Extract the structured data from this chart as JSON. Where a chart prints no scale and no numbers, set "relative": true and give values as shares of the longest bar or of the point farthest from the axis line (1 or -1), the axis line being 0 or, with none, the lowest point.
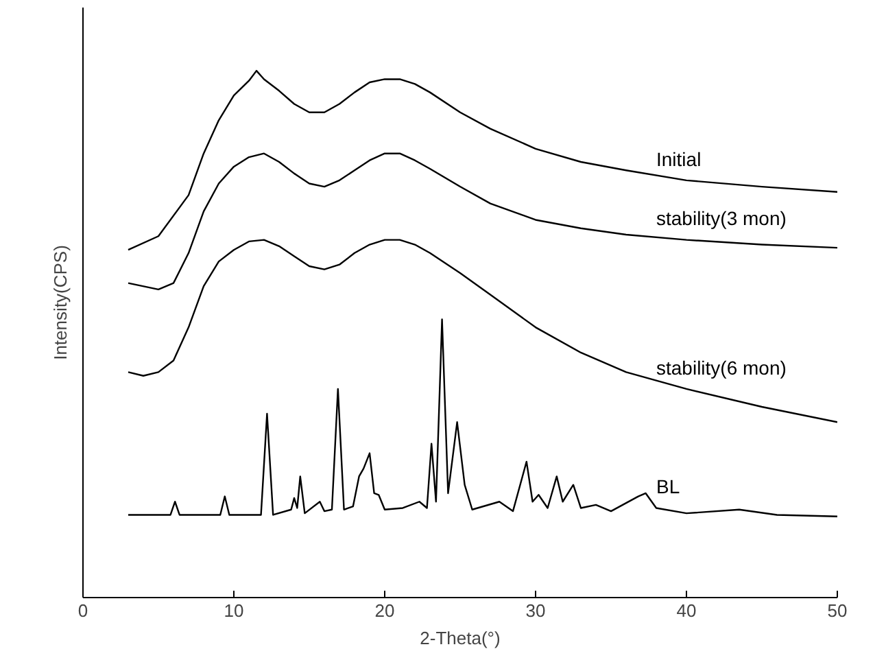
{
  "chart_data": {
    "type": "line",
    "relative": true,
    "xlabel": "2-Theta(°)",
    "ylabel": "Intensity(CPS)",
    "xlim": [
      0,
      50
    ],
    "xticks": [
      0,
      10,
      20,
      30,
      40,
      50
    ],
    "grid": false,
    "legend": false,
    "marker": "none",
    "line_style": "solid",
    "series": [
      {
        "name": "Initial",
        "color": "#000000",
        "x": [
          3,
          5,
          7,
          8,
          9,
          10,
          11,
          11.5,
          12,
          13,
          14,
          15,
          16,
          17,
          18,
          19,
          20,
          21,
          22,
          23,
          25,
          27,
          30,
          33,
          36,
          40,
          45,
          50
        ],
        "values": [
          0.66,
          0.686,
          0.764,
          0.843,
          0.906,
          0.953,
          0.981,
          1.0,
          0.984,
          0.962,
          0.937,
          0.921,
          0.921,
          0.937,
          0.959,
          0.978,
          0.984,
          0.984,
          0.975,
          0.959,
          0.921,
          0.89,
          0.852,
          0.827,
          0.811,
          0.792,
          0.78,
          0.77
        ]
      },
      {
        "name": "stability(3 mon)",
        "color": "#000000",
        "x": [
          3,
          5,
          6,
          7,
          8,
          9,
          10,
          11,
          12,
          13,
          14,
          15,
          16,
          17,
          18,
          19,
          20,
          21,
          22,
          23,
          25,
          27,
          30,
          33,
          36,
          40,
          45,
          50
        ],
        "values": [
          0.597,
          0.585,
          0.597,
          0.654,
          0.733,
          0.786,
          0.818,
          0.836,
          0.843,
          0.827,
          0.805,
          0.786,
          0.78,
          0.792,
          0.811,
          0.83,
          0.843,
          0.843,
          0.83,
          0.814,
          0.78,
          0.748,
          0.717,
          0.701,
          0.689,
          0.679,
          0.67,
          0.664
        ]
      },
      {
        "name": "stability(6 mon)",
        "color": "#000000",
        "x": [
          3,
          4,
          5,
          6,
          7,
          8,
          9,
          10,
          11,
          12,
          13,
          14,
          15,
          16,
          17,
          18,
          19,
          20,
          21,
          22,
          23,
          25,
          27,
          30,
          33,
          36,
          40,
          45,
          50
        ],
        "values": [
          0.428,
          0.421,
          0.428,
          0.45,
          0.513,
          0.591,
          0.638,
          0.66,
          0.676,
          0.679,
          0.667,
          0.648,
          0.629,
          0.623,
          0.632,
          0.654,
          0.67,
          0.679,
          0.679,
          0.67,
          0.654,
          0.616,
          0.575,
          0.513,
          0.465,
          0.428,
          0.396,
          0.362,
          0.333
        ]
      },
      {
        "name": "BL",
        "color": "#000000",
        "x": [
          3,
          5.8,
          6.1,
          6.4,
          9.1,
          9.4,
          9.7,
          11.8,
          12.2,
          12.6,
          13.8,
          14.0,
          14.2,
          14.4,
          14.7,
          15.7,
          16.0,
          16.5,
          16.9,
          17.3,
          17.9,
          18.3,
          18.6,
          19.0,
          19.3,
          19.6,
          20.0,
          21.2,
          22.3,
          22.8,
          23.1,
          23.4,
          23.8,
          24.2,
          24.8,
          25.3,
          25.8,
          27.6,
          28.5,
          29.4,
          29.8,
          30.2,
          30.8,
          31.4,
          31.8,
          32.5,
          33.0,
          34.0,
          35.0,
          36.8,
          37.3,
          38.0,
          40,
          43.5,
          46,
          50
        ],
        "values": [
          0.157,
          0.157,
          0.182,
          0.157,
          0.157,
          0.192,
          0.157,
          0.157,
          0.349,
          0.157,
          0.167,
          0.189,
          0.17,
          0.23,
          0.16,
          0.182,
          0.164,
          0.167,
          0.396,
          0.167,
          0.173,
          0.23,
          0.245,
          0.274,
          0.198,
          0.195,
          0.167,
          0.17,
          0.182,
          0.17,
          0.292,
          0.182,
          0.528,
          0.198,
          0.333,
          0.214,
          0.167,
          0.182,
          0.164,
          0.258,
          0.182,
          0.195,
          0.17,
          0.23,
          0.182,
          0.214,
          0.17,
          0.176,
          0.164,
          0.192,
          0.198,
          0.17,
          0.16,
          0.167,
          0.157,
          0.154
        ]
      }
    ]
  }
}
